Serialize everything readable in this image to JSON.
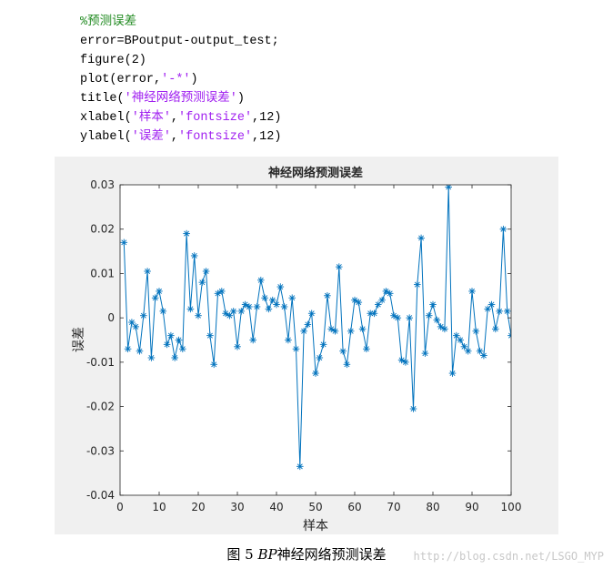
{
  "code": {
    "comment": "%预测误差",
    "line1": "error=BPoutput-output_test;",
    "line2": "figure(2)",
    "line3_pre": "plot(error,",
    "line3_str": "'-*'",
    "line3_post": ")",
    "line4_pre": "title(",
    "line4_str": "'神经网络预测误差'",
    "line4_post": ")",
    "line5_pre": "xlabel(",
    "line5_str1": "'样本'",
    "line5_mid": ",",
    "line5_str2": "'fontsize'",
    "line5_post": ",12)",
    "line6_pre": "ylabel(",
    "line6_str1": "'误差'",
    "line6_mid": ",",
    "line6_str2": "'fontsize'",
    "line6_post": ",12)"
  },
  "caption": {
    "prefix": "图 5 ",
    "italic": "BP",
    "suffix": "神经网络预测误差"
  },
  "watermark": "http://blog.csdn.net/LSGO_MYP",
  "colors": {
    "line": "#0072bd",
    "comment": "#228b22",
    "string": "#a020f0",
    "figure_bg": "#f0f0f0"
  },
  "chart_data": {
    "type": "line",
    "title": "神经网络预测误差",
    "xlabel": "样本",
    "ylabel": "误差",
    "xlim": [
      0,
      100
    ],
    "ylim": [
      -0.04,
      0.03
    ],
    "xticks": [
      "0",
      "10",
      "20",
      "30",
      "40",
      "50",
      "60",
      "70",
      "80",
      "90",
      "100"
    ],
    "yticks": [
      "0.03",
      "0.02",
      "0.01",
      "0",
      "-0.01",
      "-0.02",
      "-0.03",
      "-0.04"
    ],
    "marker": "*",
    "grid": false,
    "series": [
      {
        "x": [
          1,
          2,
          3,
          4,
          5,
          6,
          7,
          8,
          9,
          10,
          11,
          12,
          13,
          14,
          15,
          16,
          17,
          18,
          19,
          20,
          21,
          22,
          23,
          24,
          25,
          26,
          27,
          28,
          29,
          30,
          31,
          32,
          33,
          34,
          35,
          36,
          37,
          38,
          39,
          40,
          41,
          42,
          43,
          44,
          45,
          46,
          47,
          48,
          49,
          50,
          51,
          52,
          53,
          54,
          55,
          56,
          57,
          58,
          59,
          60,
          61,
          62,
          63,
          64,
          65,
          66,
          67,
          68,
          69,
          70,
          71,
          72,
          73,
          74,
          75,
          76,
          77,
          78,
          79,
          80,
          81,
          82,
          83,
          84,
          85,
          86,
          87,
          88,
          89,
          90,
          91,
          92,
          93,
          94,
          95,
          96,
          97,
          98,
          99,
          100,
          101
        ],
        "values": [
          0.017,
          -0.007,
          -0.001,
          -0.002,
          -0.0075,
          0.0005,
          0.0105,
          -0.009,
          0.0045,
          0.006,
          0.0015,
          -0.006,
          -0.004,
          -0.009,
          -0.005,
          -0.007,
          0.019,
          0.002,
          0.014,
          0.0005,
          0.008,
          0.0105,
          -0.004,
          -0.0105,
          0.0055,
          0.006,
          0.001,
          0.0005,
          0.0015,
          -0.0065,
          0.0015,
          0.003,
          0.0025,
          -0.005,
          0.0025,
          0.0085,
          0.0045,
          0.002,
          0.004,
          0.003,
          0.007,
          0.0025,
          -0.005,
          0.0045,
          -0.007,
          -0.0335,
          -0.003,
          -0.0015,
          0.001,
          -0.0125,
          -0.009,
          -0.006,
          0.005,
          -0.0025,
          -0.003,
          0.0115,
          -0.0075,
          -0.0105,
          -0.003,
          0.004,
          0.0035,
          -0.0025,
          -0.007,
          0.001,
          0.001,
          0.003,
          0.004,
          0.006,
          0.0055,
          0.0005,
          0.0,
          -0.0095,
          -0.01,
          0.0,
          -0.0205,
          0.0075,
          0.018,
          -0.008,
          0.0005,
          0.003,
          -0.0005,
          -0.002,
          -0.0025,
          0.0295,
          -0.0125,
          -0.004,
          -0.005,
          -0.0065,
          -0.0075,
          0.006,
          -0.003,
          -0.0075,
          -0.0085,
          0.002,
          0.003,
          -0.0025,
          0.0015,
          0.02,
          0.0015,
          -0.004,
          0.0
        ]
      }
    ]
  }
}
